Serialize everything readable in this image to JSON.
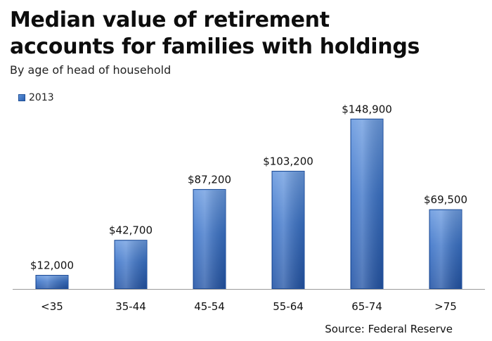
{
  "colors": {
    "bar_top": "#6b9be0",
    "bar_mid": "#3b73c8",
    "bar_bottom": "#2455a6",
    "bar_edge": "#1d4a92",
    "axis": "#9a9a9a"
  },
  "chart_data": {
    "type": "bar",
    "title": "Median value of retirement accounts for families with holdings",
    "title_lines": [
      "Median value of retirement",
      "accounts for families with holdings"
    ],
    "subtitle": "By age of head of household",
    "categories": [
      "<35",
      "35-44",
      "45-54",
      "55-64",
      "65-74",
      ">75"
    ],
    "series": [
      {
        "name": "2013",
        "values": [
          12000,
          42700,
          87200,
          103200,
          148900,
          69500
        ],
        "labels": [
          "$12,000",
          "$42,700",
          "$87,200",
          "$103,200",
          "$148,900",
          "$69,500"
        ]
      }
    ],
    "ylim": [
      0,
      170000
    ],
    "grid": false,
    "legend": "top-left",
    "source": "Source: Federal Reserve"
  }
}
